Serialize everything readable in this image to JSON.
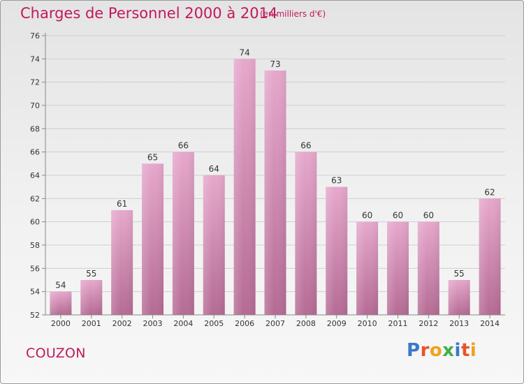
{
  "title": "Charges de Personnel 2000 à 2014",
  "unit_note": "(en milliers d'€)",
  "commune": "COUZON",
  "logo": {
    "text": "Proxiti",
    "letters": [
      "P",
      "r",
      "o",
      "x",
      "i",
      "t",
      "i"
    ],
    "colors": [
      "#3a78c9",
      "#e8532b",
      "#f2a11b",
      "#3fae49",
      "#3a78c9",
      "#e8532b",
      "#f2a11b"
    ]
  },
  "colors": {
    "bar_top": "#e6a8cc",
    "bar_bottom": "#b56b94",
    "title": "#c2185b"
  },
  "chart_data": {
    "type": "bar",
    "title": "Charges de Personnel 2000 à 2014",
    "subtitle": "(en milliers d'€)",
    "xlabel": "",
    "ylabel": "",
    "categories": [
      "2000",
      "2001",
      "2002",
      "2003",
      "2004",
      "2005",
      "2006",
      "2007",
      "2008",
      "2009",
      "2010",
      "2011",
      "2012",
      "2013",
      "2014"
    ],
    "values": [
      54,
      55,
      61,
      65,
      66,
      64,
      74,
      73,
      66,
      63,
      60,
      60,
      60,
      55,
      62
    ],
    "ylim": [
      52,
      76
    ],
    "yticks": [
      52,
      54,
      56,
      58,
      60,
      62,
      64,
      66,
      68,
      70,
      72,
      74,
      76
    ],
    "grid": true
  }
}
